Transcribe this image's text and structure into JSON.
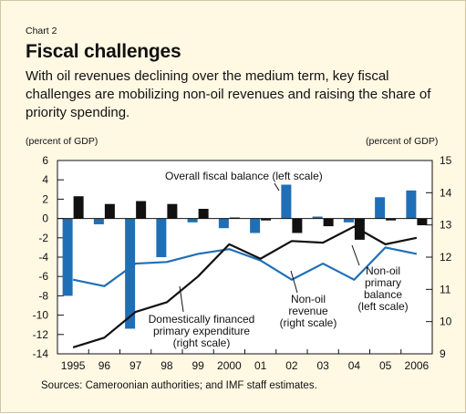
{
  "header": {
    "chart_number": "Chart 2",
    "title": "Fiscal challenges",
    "subtitle": "With oil revenues declining over the medium term, key fiscal challenges are mobilizing non-oil revenues and raising the share of priority spending."
  },
  "footer": {
    "source": "Sources: Cameroonian authorities; and IMF staff estimates."
  },
  "chart_data": {
    "type": "bar-line",
    "categories": [
      "1995",
      "96",
      "97",
      "98",
      "99",
      "2000",
      "01",
      "02",
      "03",
      "04",
      "05",
      "2006"
    ],
    "left_axis": {
      "label": "(percent of GDP)",
      "ylim": [
        -14,
        6
      ],
      "ticks": [
        "6",
        "4",
        "2",
        "0",
        "-2",
        "-4",
        "-6",
        "-8",
        "-10",
        "-12",
        "-14"
      ]
    },
    "right_axis": {
      "label": "(percent of GDP)",
      "ylim": [
        9,
        15
      ],
      "ticks": [
        "15",
        "14",
        "13",
        "12",
        "11",
        "10",
        "9"
      ]
    },
    "series": [
      {
        "name": "Overall fiscal balance (left scale)",
        "type": "bar",
        "axis": "left",
        "color": "#111111",
        "values": [
          2.3,
          1.5,
          1.8,
          1.5,
          1.0,
          0.1,
          -0.2,
          -1.5,
          -0.8,
          -2.2,
          -0.2,
          -0.7
        ]
      },
      {
        "name": "Non-oil primary balance (left scale)",
        "type": "bar",
        "axis": "left",
        "color": "#1f6fb6",
        "values": [
          -8.0,
          -0.6,
          -11.4,
          -4.0,
          -0.4,
          -1.0,
          -1.5,
          3.5,
          0.2,
          -0.4,
          2.2,
          2.9
        ]
      },
      {
        "name": "Non-oil revenue (right scale)",
        "type": "line",
        "axis": "right",
        "color": "#1f6fb6",
        "values": [
          11.3,
          11.1,
          11.8,
          11.85,
          12.1,
          12.25,
          11.9,
          11.3,
          11.8,
          11.3,
          12.3,
          12.1
        ]
      },
      {
        "name": "Domestically financed primary expenditure (right scale)",
        "type": "line",
        "axis": "right",
        "color": "#111111",
        "values": [
          9.2,
          9.5,
          10.3,
          10.6,
          11.4,
          12.4,
          11.95,
          12.5,
          12.45,
          12.95,
          12.4,
          12.6
        ]
      }
    ],
    "annotations": {
      "overall": "Overall fiscal balance (left scale)",
      "nonoil_primary": [
        "Non-oil",
        "primary",
        "balance",
        "(left scale)"
      ],
      "nonoil_revenue": [
        "Non-oil",
        "revenue",
        "(right scale)"
      ],
      "dom_exp": [
        "Domestically financed",
        "primary expenditure",
        "(right scale)"
      ]
    },
    "grid": false
  }
}
